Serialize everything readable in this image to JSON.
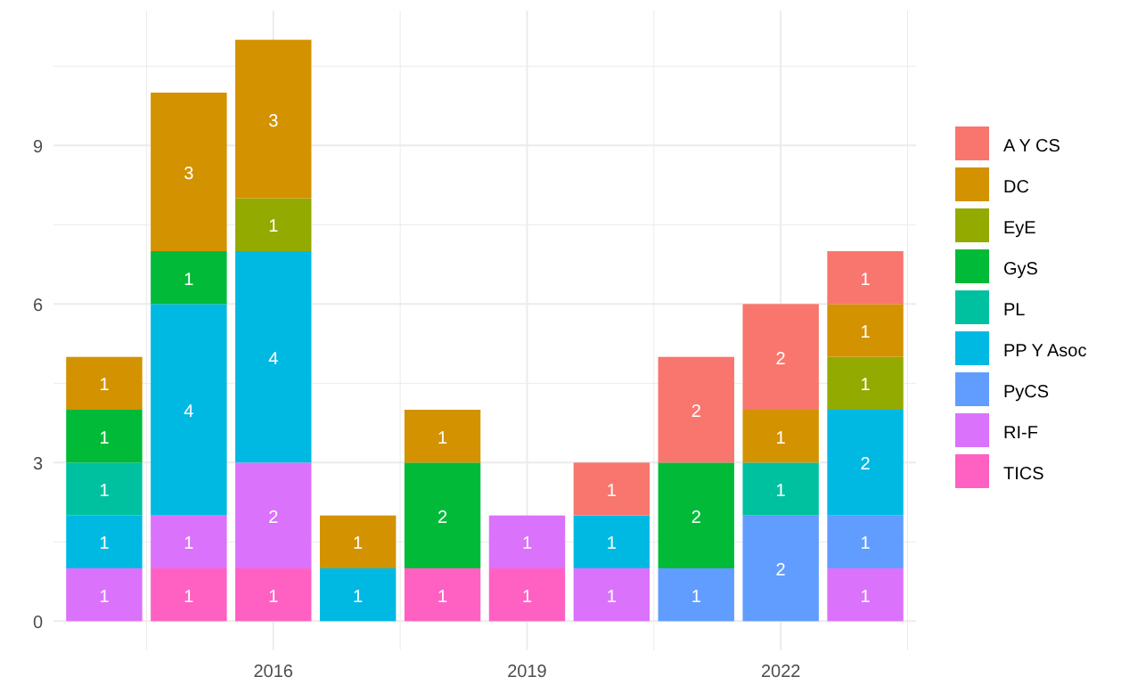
{
  "chart_data": {
    "type": "bar",
    "stacked": true,
    "data_labels": true,
    "grid": true,
    "legend": "right",
    "x": [
      2014,
      2015,
      2016,
      2017,
      2018,
      2019,
      2020,
      2021,
      2022,
      2023
    ],
    "xlim": [
      2013.4,
      2023.6
    ],
    "xticks": [
      {
        "value": 2014.5,
        "label": null
      },
      2016,
      {
        "value": 2017.5,
        "label": null
      },
      2019,
      {
        "value": 2020.5,
        "label": null
      },
      2022,
      {
        "value": 2023.5,
        "label": null
      }
    ],
    "ylim": [
      -0.55,
      11.55
    ],
    "yticks": [
      0,
      {
        "value": 1.5,
        "label": null
      },
      3,
      {
        "value": 4.5,
        "label": null
      },
      6,
      {
        "value": 7.5,
        "label": null
      },
      9,
      {
        "value": 10.5,
        "label": null
      }
    ],
    "series": [
      {
        "name": "TICS",
        "color": "#ff61c3",
        "values": [
          null,
          1,
          1,
          null,
          1,
          1,
          null,
          null,
          null,
          null
        ]
      },
      {
        "name": "RI-F",
        "color": "#db72fb",
        "values": [
          1,
          1,
          2,
          null,
          null,
          1,
          1,
          null,
          null,
          1
        ]
      },
      {
        "name": "PyCS",
        "color": "#619cff",
        "values": [
          null,
          null,
          null,
          null,
          null,
          null,
          null,
          1,
          2,
          1
        ]
      },
      {
        "name": "PP Y Asoc",
        "color": "#00b9e3",
        "values": [
          1,
          4,
          4,
          1,
          null,
          null,
          1,
          null,
          null,
          2
        ]
      },
      {
        "name": "PL",
        "color": "#00c19f",
        "values": [
          1,
          null,
          null,
          null,
          null,
          null,
          null,
          null,
          1,
          null
        ]
      },
      {
        "name": "GyS",
        "color": "#00ba38",
        "values": [
          1,
          1,
          null,
          null,
          2,
          null,
          null,
          2,
          null,
          null
        ]
      },
      {
        "name": "EyE",
        "color": "#93aa00",
        "values": [
          null,
          null,
          1,
          null,
          null,
          null,
          null,
          null,
          null,
          1
        ]
      },
      {
        "name": "DC",
        "color": "#d39200",
        "values": [
          1,
          3,
          3,
          1,
          1,
          null,
          null,
          null,
          1,
          1
        ]
      },
      {
        "name": "A Y CS",
        "color": "#f8766d",
        "values": [
          null,
          null,
          null,
          null,
          null,
          null,
          1,
          2,
          2,
          1
        ]
      }
    ]
  }
}
